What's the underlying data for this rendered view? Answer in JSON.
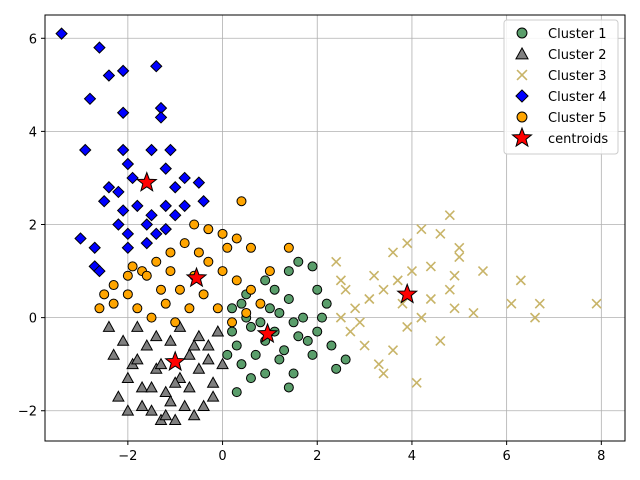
{
  "chart_data": {
    "type": "scatter",
    "title": "",
    "xlabel": "",
    "ylabel": "",
    "xlim": [
      -3.75,
      8.5
    ],
    "ylim": [
      -2.65,
      6.5
    ],
    "xticks": [
      -2,
      0,
      2,
      4,
      6,
      8
    ],
    "yticks": [
      -2,
      0,
      2,
      4,
      6
    ],
    "xtick_labels": [
      "−2",
      "0",
      "2",
      "4",
      "6",
      "8"
    ],
    "ytick_labels": [
      "−2",
      "0",
      "2",
      "4",
      "6"
    ],
    "grid": true,
    "legend_position": "top-right",
    "series": [
      {
        "name": "Cluster 1",
        "marker": "circle",
        "color": "#5a9e6b",
        "points": [
          [
            1.6,
            1.2
          ],
          [
            1.9,
            1.1
          ],
          [
            0.9,
            0.8
          ],
          [
            1.4,
            0.4
          ],
          [
            2.0,
            0.6
          ],
          [
            2.2,
            0.3
          ],
          [
            0.5,
            0.5
          ],
          [
            0.2,
            0.2
          ],
          [
            0.6,
            -0.2
          ],
          [
            1.1,
            -0.3
          ],
          [
            1.5,
            -0.1
          ],
          [
            1.8,
            -0.5
          ],
          [
            2.3,
            -0.6
          ],
          [
            2.4,
            -1.1
          ],
          [
            1.4,
            -1.5
          ],
          [
            0.9,
            -1.2
          ],
          [
            0.4,
            -1.0
          ],
          [
            0.1,
            -0.8
          ],
          [
            0.3,
            -0.6
          ],
          [
            0.7,
            -0.8
          ],
          [
            1.3,
            -0.7
          ],
          [
            1.0,
            0.2
          ],
          [
            1.2,
            -0.9
          ],
          [
            1.7,
            0.0
          ],
          [
            2.0,
            -0.3
          ],
          [
            0.3,
            -1.6
          ],
          [
            0.8,
            -0.1
          ],
          [
            1.5,
            -1.2
          ],
          [
            1.9,
            -0.8
          ],
          [
            2.6,
            -0.9
          ],
          [
            0.5,
            0.0
          ],
          [
            1.1,
            0.6
          ],
          [
            1.4,
            1.0
          ],
          [
            0.2,
            -0.3
          ],
          [
            0.6,
            -1.3
          ],
          [
            1.2,
            0.1
          ],
          [
            1.6,
            -0.4
          ],
          [
            2.1,
            0.0
          ],
          [
            0.4,
            0.3
          ],
          [
            0.9,
            -0.5
          ]
        ]
      },
      {
        "name": "Cluster 2",
        "marker": "triangle",
        "color": "#808080",
        "points": [
          [
            -2.4,
            -0.2
          ],
          [
            -2.1,
            -0.5
          ],
          [
            -1.9,
            -1.0
          ],
          [
            -1.7,
            -1.5
          ],
          [
            -1.5,
            -2.0
          ],
          [
            -1.3,
            -2.2
          ],
          [
            -1.1,
            -1.8
          ],
          [
            -0.9,
            -1.3
          ],
          [
            -0.7,
            -0.8
          ],
          [
            -0.5,
            -0.4
          ],
          [
            -0.3,
            -0.9
          ],
          [
            -0.2,
            -1.4
          ],
          [
            -0.4,
            -1.9
          ],
          [
            -0.6,
            -2.1
          ],
          [
            -1.0,
            -2.2
          ],
          [
            -1.2,
            -1.6
          ],
          [
            -1.4,
            -1.1
          ],
          [
            -1.6,
            -0.6
          ],
          [
            -1.8,
            -0.2
          ],
          [
            -2.0,
            -1.3
          ],
          [
            -2.2,
            -1.7
          ],
          [
            -2.0,
            -2.0
          ],
          [
            -1.7,
            -1.9
          ],
          [
            -1.5,
            -1.5
          ],
          [
            -1.3,
            -1.0
          ],
          [
            -1.1,
            -0.5
          ],
          [
            -0.9,
            -0.2
          ],
          [
            -0.7,
            -1.5
          ],
          [
            -0.5,
            -1.1
          ],
          [
            -0.3,
            -0.6
          ],
          [
            -0.1,
            -0.3
          ],
          [
            0.0,
            -1.0
          ],
          [
            -0.2,
            -1.7
          ],
          [
            -0.8,
            -1.9
          ],
          [
            -1.4,
            -0.4
          ],
          [
            -1.8,
            -0.9
          ],
          [
            -2.3,
            -0.8
          ],
          [
            -1.2,
            -2.1
          ],
          [
            -0.6,
            -0.6
          ],
          [
            -1.0,
            -1.4
          ]
        ]
      },
      {
        "name": "Cluster 3",
        "marker": "x",
        "color": "#c8b468",
        "points": [
          [
            4.8,
            2.2
          ],
          [
            4.6,
            1.8
          ],
          [
            4.2,
            1.9
          ],
          [
            3.9,
            1.6
          ],
          [
            3.6,
            1.4
          ],
          [
            5.0,
            1.3
          ],
          [
            5.5,
            1.0
          ],
          [
            4.9,
            0.9
          ],
          [
            4.4,
            1.1
          ],
          [
            4.0,
            1.0
          ],
          [
            3.7,
            0.8
          ],
          [
            3.4,
            0.6
          ],
          [
            3.1,
            0.4
          ],
          [
            2.8,
            0.2
          ],
          [
            2.5,
            0.0
          ],
          [
            2.7,
            -0.3
          ],
          [
            3.0,
            -0.6
          ],
          [
            3.3,
            -1.0
          ],
          [
            3.4,
            -1.2
          ],
          [
            3.9,
            -0.2
          ],
          [
            4.2,
            0.0
          ],
          [
            4.6,
            -0.5
          ],
          [
            5.3,
            0.1
          ],
          [
            6.1,
            0.3
          ],
          [
            6.3,
            0.8
          ],
          [
            6.7,
            0.3
          ],
          [
            6.6,
            0.0
          ],
          [
            7.9,
            0.3
          ],
          [
            4.1,
            -1.4
          ],
          [
            4.8,
            0.6
          ],
          [
            5.0,
            1.5
          ],
          [
            3.2,
            0.9
          ],
          [
            2.6,
            0.6
          ],
          [
            2.9,
            -0.1
          ],
          [
            3.6,
            -0.7
          ],
          [
            4.4,
            0.4
          ],
          [
            3.8,
            0.3
          ],
          [
            4.9,
            0.2
          ],
          [
            2.4,
            1.2
          ],
          [
            2.5,
            0.8
          ]
        ]
      },
      {
        "name": "Cluster 4",
        "marker": "diamond",
        "color": "#0000ff",
        "points": [
          [
            -3.4,
            6.1
          ],
          [
            -2.6,
            5.8
          ],
          [
            -2.1,
            5.3
          ],
          [
            -2.4,
            5.2
          ],
          [
            -1.4,
            5.4
          ],
          [
            -2.8,
            4.7
          ],
          [
            -2.1,
            4.4
          ],
          [
            -1.3,
            4.5
          ],
          [
            -1.3,
            4.3
          ],
          [
            -2.9,
            3.6
          ],
          [
            -2.1,
            3.6
          ],
          [
            -1.5,
            3.6
          ],
          [
            -1.1,
            3.6
          ],
          [
            -2.0,
            3.3
          ],
          [
            -1.2,
            3.2
          ],
          [
            -1.9,
            3.0
          ],
          [
            -0.8,
            3.0
          ],
          [
            -0.5,
            2.9
          ],
          [
            -2.4,
            2.8
          ],
          [
            -2.2,
            2.7
          ],
          [
            -1.0,
            2.8
          ],
          [
            -2.5,
            2.5
          ],
          [
            -1.8,
            2.4
          ],
          [
            -1.2,
            2.4
          ],
          [
            -0.8,
            2.4
          ],
          [
            -0.4,
            2.5
          ],
          [
            -2.1,
            2.3
          ],
          [
            -1.5,
            2.2
          ],
          [
            -1.0,
            2.2
          ],
          [
            -2.2,
            2.0
          ],
          [
            -1.6,
            2.0
          ],
          [
            -1.2,
            1.9
          ],
          [
            -2.0,
            1.8
          ],
          [
            -1.4,
            1.8
          ],
          [
            -3.0,
            1.7
          ],
          [
            -2.7,
            1.5
          ],
          [
            -2.0,
            1.5
          ],
          [
            -1.6,
            1.6
          ],
          [
            -2.7,
            1.1
          ],
          [
            -2.6,
            1.0
          ]
        ]
      },
      {
        "name": "Cluster 5",
        "marker": "circle",
        "color": "#ffa500",
        "points": [
          [
            -0.6,
            2.0
          ],
          [
            -0.3,
            1.9
          ],
          [
            0.0,
            1.8
          ],
          [
            0.3,
            1.7
          ],
          [
            0.6,
            1.5
          ],
          [
            0.4,
            2.5
          ],
          [
            -0.8,
            1.6
          ],
          [
            -1.1,
            1.4
          ],
          [
            -1.4,
            1.2
          ],
          [
            -1.7,
            1.0
          ],
          [
            -2.0,
            0.9
          ],
          [
            -2.3,
            0.7
          ],
          [
            -2.5,
            0.5
          ],
          [
            -2.3,
            0.3
          ],
          [
            -2.0,
            0.5
          ],
          [
            -1.8,
            0.2
          ],
          [
            -1.5,
            0.0
          ],
          [
            -1.2,
            0.3
          ],
          [
            -0.9,
            0.6
          ],
          [
            -0.6,
            0.9
          ],
          [
            -0.3,
            1.2
          ],
          [
            0.0,
            1.0
          ],
          [
            0.3,
            0.8
          ],
          [
            0.6,
            0.6
          ],
          [
            0.8,
            0.3
          ],
          [
            0.5,
            0.1
          ],
          [
            0.2,
            -0.1
          ],
          [
            -0.1,
            0.2
          ],
          [
            -0.4,
            0.5
          ],
          [
            -0.7,
            0.2
          ],
          [
            -1.0,
            -0.1
          ],
          [
            -1.3,
            0.6
          ],
          [
            -1.6,
            0.9
          ],
          [
            -1.9,
            1.1
          ],
          [
            -1.1,
            1.0
          ],
          [
            -0.5,
            1.4
          ],
          [
            0.1,
            1.5
          ],
          [
            1.0,
            1.0
          ],
          [
            1.4,
            1.5
          ],
          [
            -2.6,
            0.2
          ]
        ]
      },
      {
        "name": "centroids",
        "marker": "star",
        "color": "#ff0000",
        "points": [
          [
            -1.6,
            2.9
          ],
          [
            -0.55,
            0.85
          ],
          [
            0.95,
            -0.35
          ],
          [
            -1.0,
            -0.95
          ],
          [
            3.9,
            0.5
          ]
        ]
      }
    ]
  }
}
